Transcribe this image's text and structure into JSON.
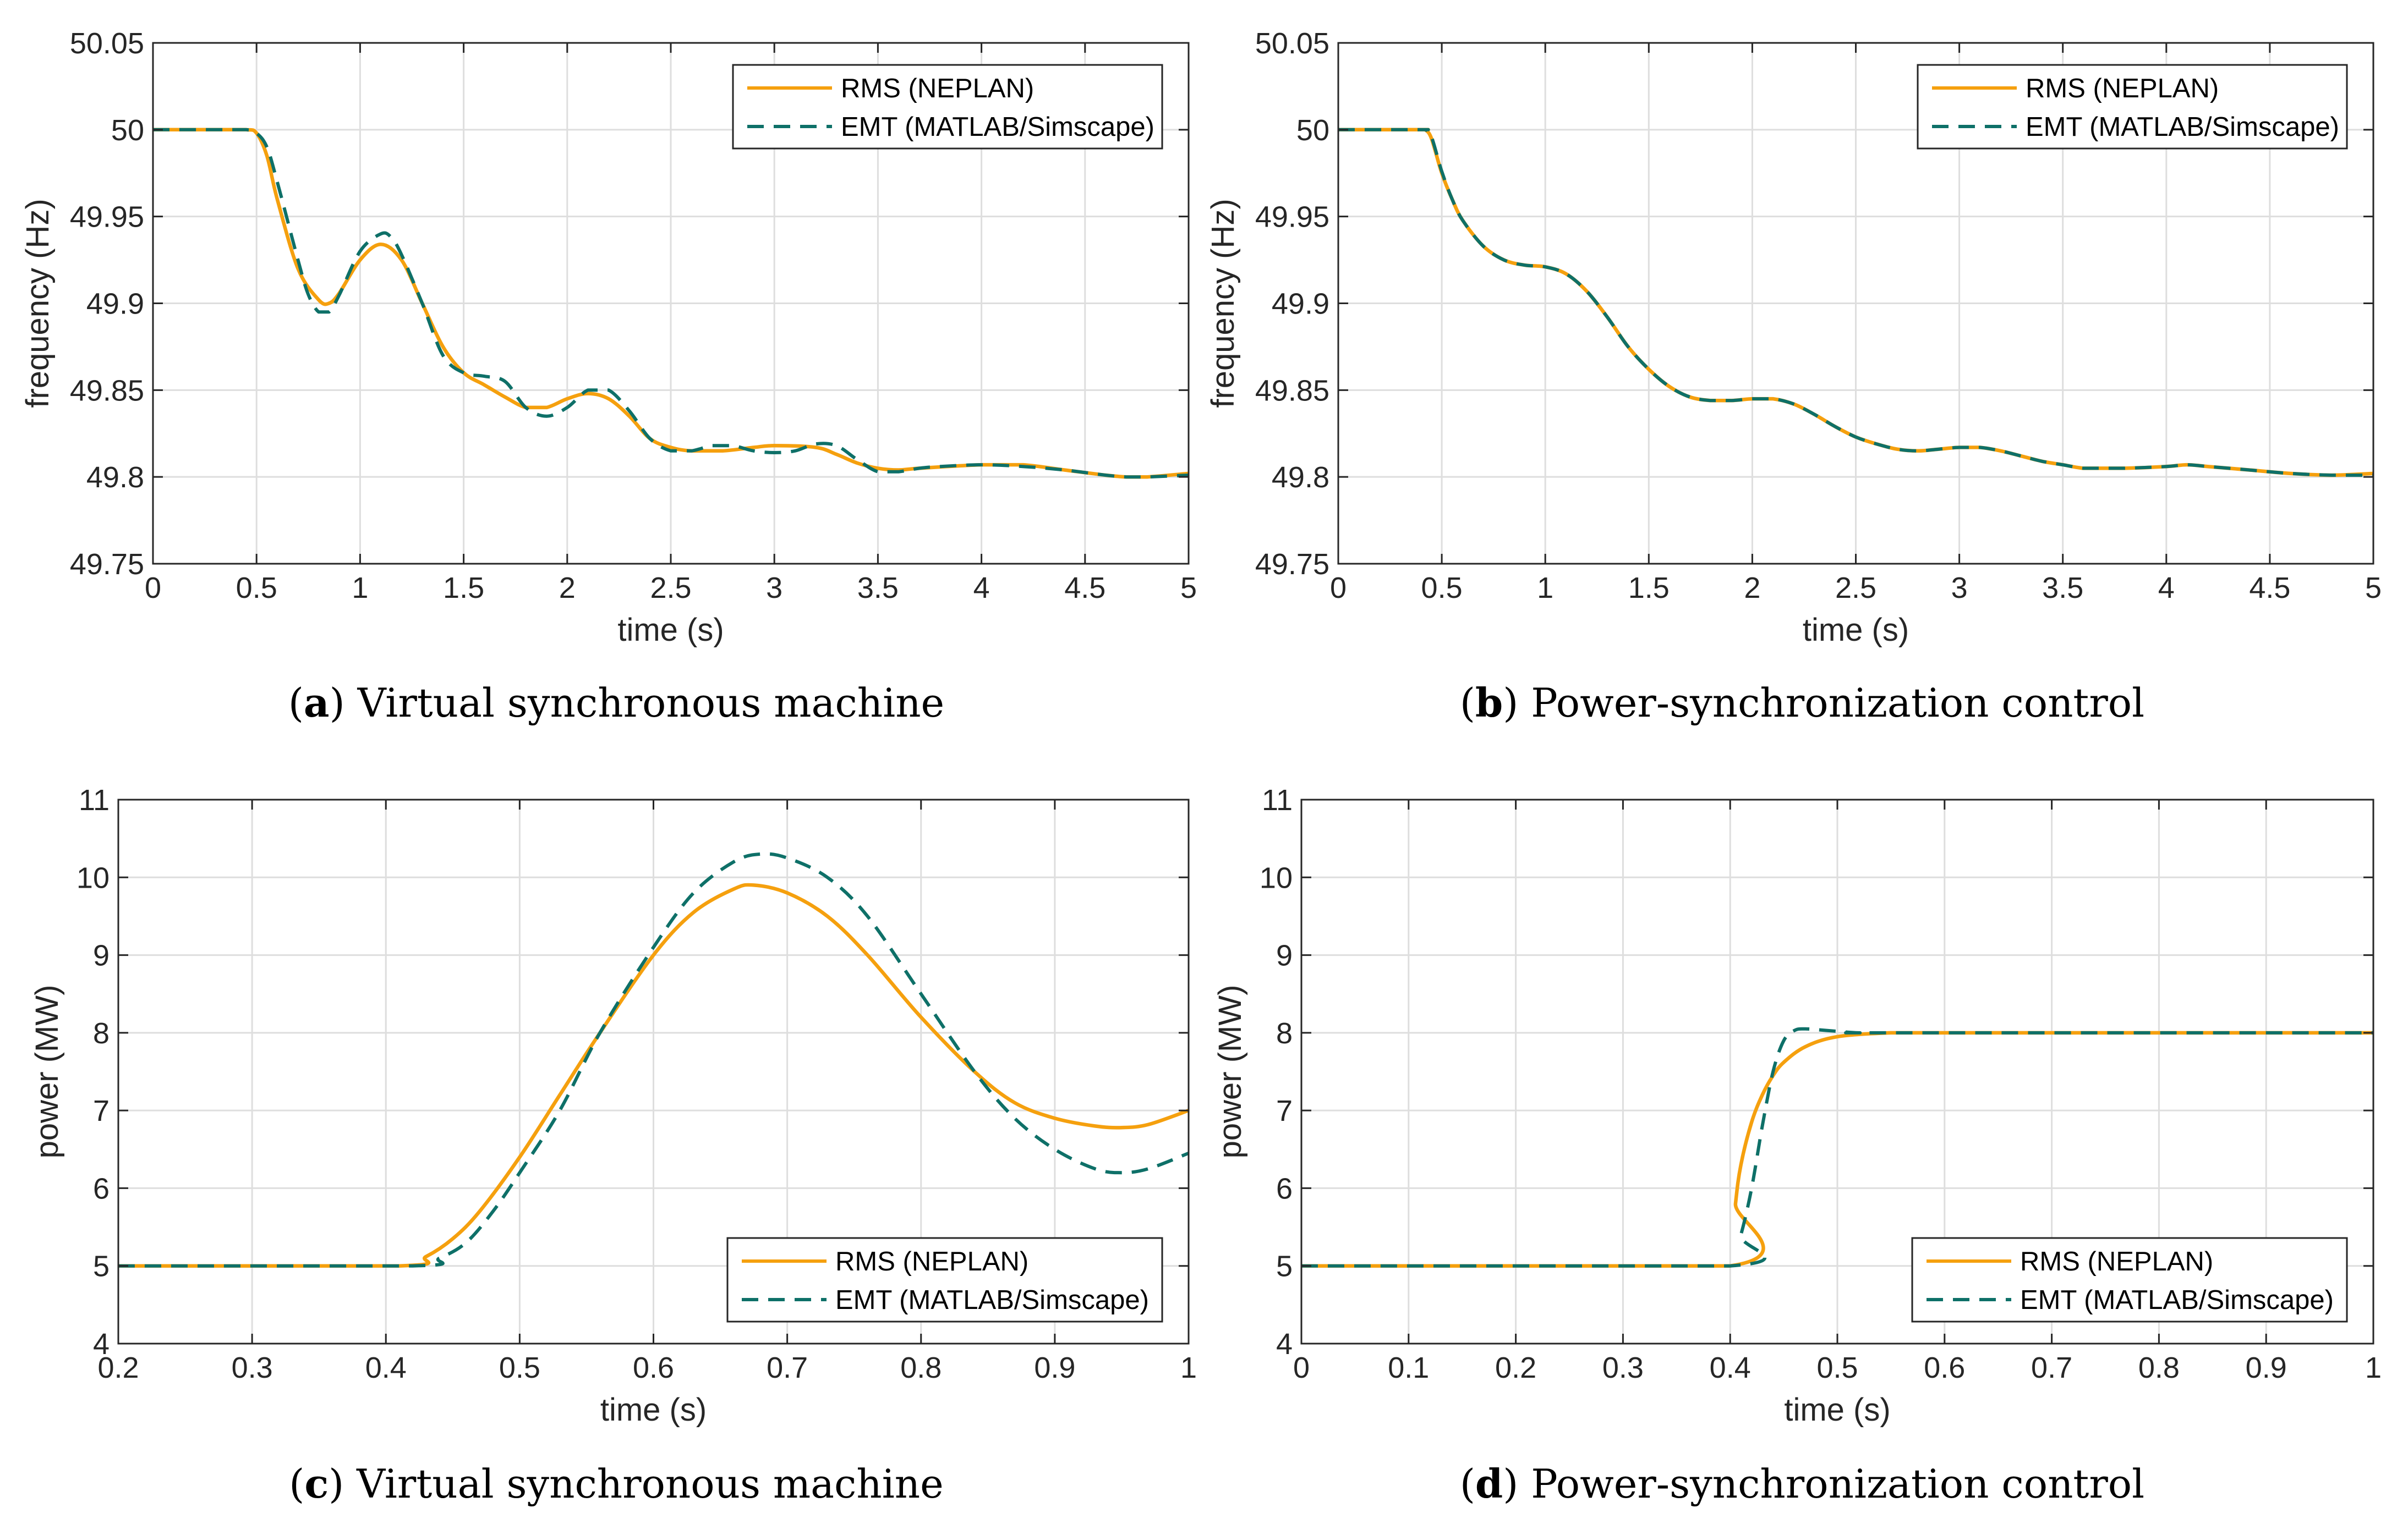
{
  "colors": {
    "rms": "#F5A00E",
    "emt": "#0E7068",
    "grid": "#DEDEDE",
    "axis": "#262626"
  },
  "chart_data": [
    {
      "id": "a",
      "type": "line",
      "caption_letter": "a",
      "caption_text": "Virtual synchronous machine",
      "xlabel": "time (s)",
      "ylabel": "frequency (Hz)",
      "xlim": [
        0,
        5
      ],
      "ylim": [
        49.75,
        50.05
      ],
      "xticks": [
        0,
        0.5,
        1,
        1.5,
        2,
        2.5,
        3,
        3.5,
        4,
        4.5,
        5
      ],
      "xtick_labels": [
        "0",
        "0.5",
        "1",
        "1.5",
        "2",
        "2.5",
        "3",
        "3.5",
        "4",
        "4.5",
        "5"
      ],
      "yticks": [
        49.75,
        49.8,
        49.85,
        49.9,
        49.95,
        50,
        50.05
      ],
      "ytick_labels": [
        "49.75",
        "49.8",
        "49.85",
        "49.9",
        "49.95",
        "50",
        "50.05"
      ],
      "legend_position": "top-right",
      "series": [
        {
          "name": "RMS (NEPLAN)",
          "style": "solid",
          "x": [
            0,
            0.3,
            0.45,
            0.5,
            0.55,
            0.6,
            0.7,
            0.8,
            0.85,
            0.9,
            1.0,
            1.1,
            1.2,
            1.3,
            1.4,
            1.5,
            1.6,
            1.7,
            1.8,
            1.9,
            2.0,
            2.1,
            2.2,
            2.3,
            2.4,
            2.5,
            2.6,
            2.75,
            2.9,
            3.0,
            3.2,
            3.3,
            3.4,
            3.5,
            3.6,
            3.7,
            4.0,
            4.2,
            4.4,
            4.6,
            4.7,
            4.8,
            5.0
          ],
          "y": [
            50.0,
            50.0,
            50.0,
            49.998,
            49.985,
            49.96,
            49.92,
            49.902,
            49.9,
            49.906,
            49.925,
            49.934,
            49.925,
            49.9,
            49.875,
            49.86,
            49.853,
            49.846,
            49.84,
            49.84,
            49.845,
            49.848,
            49.845,
            49.835,
            49.822,
            49.817,
            49.815,
            49.815,
            49.817,
            49.818,
            49.817,
            49.813,
            49.808,
            49.805,
            49.804,
            49.805,
            49.807,
            49.807,
            49.804,
            49.801,
            49.8,
            49.8,
            49.802
          ]
        },
        {
          "name": "EMT (MATLAB/Simscape)",
          "style": "dashed",
          "x": [
            0,
            0.3,
            0.45,
            0.5,
            0.55,
            0.6,
            0.7,
            0.75,
            0.8,
            0.85,
            0.9,
            1.0,
            1.1,
            1.15,
            1.2,
            1.3,
            1.4,
            1.5,
            1.6,
            1.7,
            1.8,
            1.9,
            2.0,
            2.1,
            2.2,
            2.3,
            2.4,
            2.5,
            2.6,
            2.7,
            2.8,
            2.9,
            3.0,
            3.1,
            3.2,
            3.3,
            3.4,
            3.5,
            3.6,
            3.7,
            3.8,
            4.0,
            4.2,
            4.4,
            4.6,
            4.7,
            4.8,
            5.0
          ],
          "y": [
            50.0,
            50.0,
            50.0,
            49.998,
            49.99,
            49.97,
            49.925,
            49.905,
            49.895,
            49.895,
            49.905,
            49.93,
            49.94,
            49.938,
            49.928,
            49.9,
            49.87,
            49.86,
            49.858,
            49.855,
            49.84,
            49.835,
            49.84,
            49.85,
            49.85,
            49.838,
            49.822,
            49.815,
            49.815,
            49.818,
            49.818,
            49.815,
            49.814,
            49.815,
            49.819,
            49.818,
            49.81,
            49.803,
            49.803,
            49.805,
            49.806,
            49.807,
            49.806,
            49.804,
            49.801,
            49.8,
            49.8,
            49.801
          ]
        }
      ]
    },
    {
      "id": "b",
      "type": "line",
      "caption_letter": "b",
      "caption_text": "Power-synchronization control",
      "xlabel": "time (s)",
      "ylabel": "frequency (Hz)",
      "xlim": [
        0,
        5
      ],
      "ylim": [
        49.75,
        50.05
      ],
      "xticks": [
        0,
        0.5,
        1,
        1.5,
        2,
        2.5,
        3,
        3.5,
        4,
        4.5,
        5
      ],
      "xtick_labels": [
        "0",
        "0.5",
        "1",
        "1.5",
        "2",
        "2.5",
        "3",
        "3.5",
        "4",
        "4.5",
        "5"
      ],
      "yticks": [
        49.75,
        49.8,
        49.85,
        49.9,
        49.95,
        50,
        50.05
      ],
      "ytick_labels": [
        "49.75",
        "49.8",
        "49.85",
        "49.9",
        "49.95",
        "50",
        "50.05"
      ],
      "legend_position": "top-right",
      "series": [
        {
          "name": "RMS (NEPLAN)",
          "style": "solid",
          "x": [
            0,
            0.4,
            0.42,
            0.45,
            0.5,
            0.55,
            0.6,
            0.7,
            0.8,
            0.9,
            1.0,
            1.1,
            1.2,
            1.3,
            1.4,
            1.5,
            1.6,
            1.7,
            1.8,
            1.9,
            2.0,
            2.1,
            2.2,
            2.3,
            2.4,
            2.5,
            2.6,
            2.7,
            2.8,
            2.9,
            3.0,
            3.1,
            3.2,
            3.3,
            3.4,
            3.5,
            3.6,
            3.7,
            3.8,
            4.0,
            4.1,
            4.2,
            4.4,
            4.6,
            4.8,
            5.0
          ],
          "y": [
            50.0,
            50.0,
            50.0,
            49.995,
            49.975,
            49.96,
            49.948,
            49.933,
            49.925,
            49.922,
            49.921,
            49.917,
            49.907,
            49.892,
            49.875,
            49.862,
            49.852,
            49.846,
            49.844,
            49.844,
            49.845,
            49.845,
            49.842,
            49.836,
            49.829,
            49.823,
            49.819,
            49.816,
            49.815,
            49.816,
            49.817,
            49.817,
            49.815,
            49.812,
            49.809,
            49.807,
            49.805,
            49.805,
            49.805,
            49.806,
            49.807,
            49.806,
            49.804,
            49.802,
            49.801,
            49.802
          ]
        },
        {
          "name": "EMT (MATLAB/Simscape)",
          "style": "dashed",
          "x": [
            0,
            0.4,
            0.42,
            0.45,
            0.5,
            0.55,
            0.6,
            0.7,
            0.8,
            0.9,
            1.0,
            1.1,
            1.2,
            1.3,
            1.4,
            1.5,
            1.6,
            1.7,
            1.8,
            1.9,
            2.0,
            2.1,
            2.2,
            2.3,
            2.4,
            2.5,
            2.6,
            2.7,
            2.8,
            2.9,
            3.0,
            3.1,
            3.2,
            3.3,
            3.4,
            3.5,
            3.6,
            3.7,
            3.8,
            4.0,
            4.1,
            4.2,
            4.4,
            4.6,
            4.8,
            5.0
          ],
          "y": [
            50.0,
            50.0,
            50.0,
            49.996,
            49.976,
            49.96,
            49.948,
            49.933,
            49.925,
            49.922,
            49.921,
            49.917,
            49.907,
            49.892,
            49.875,
            49.862,
            49.852,
            49.846,
            49.844,
            49.844,
            49.845,
            49.845,
            49.842,
            49.836,
            49.829,
            49.823,
            49.819,
            49.816,
            49.815,
            49.816,
            49.817,
            49.817,
            49.815,
            49.812,
            49.809,
            49.807,
            49.805,
            49.805,
            49.805,
            49.806,
            49.807,
            49.806,
            49.804,
            49.802,
            49.801,
            49.801
          ]
        }
      ]
    },
    {
      "id": "c",
      "type": "line",
      "caption_letter": "c",
      "caption_text": "Virtual synchronous machine",
      "xlabel": "time (s)",
      "ylabel": "power (MW)",
      "xlim": [
        0.2,
        1
      ],
      "ylim": [
        4,
        11
      ],
      "xticks": [
        0.2,
        0.3,
        0.4,
        0.5,
        0.6,
        0.7,
        0.8,
        0.9,
        1
      ],
      "xtick_labels": [
        "0.2",
        "0.3",
        "0.4",
        "0.5",
        "0.6",
        "0.7",
        "0.8",
        "0.9",
        "1"
      ],
      "yticks": [
        4,
        5,
        6,
        7,
        8,
        9,
        10,
        11
      ],
      "ytick_labels": [
        "4",
        "5",
        "6",
        "7",
        "8",
        "9",
        "10",
        "11"
      ],
      "legend_position": "bottom-right",
      "series": [
        {
          "name": "RMS (NEPLAN)",
          "style": "solid",
          "x": [
            0.2,
            0.41,
            0.43,
            0.45,
            0.47,
            0.5,
            0.53,
            0.56,
            0.6,
            0.63,
            0.66,
            0.675,
            0.7,
            0.73,
            0.76,
            0.8,
            0.84,
            0.87,
            0.9,
            0.93,
            0.95,
            0.97,
            1.0
          ],
          "y": [
            5.0,
            5.0,
            5.12,
            5.35,
            5.7,
            6.4,
            7.2,
            8.0,
            9.0,
            9.55,
            9.85,
            9.9,
            9.8,
            9.5,
            9.0,
            8.2,
            7.5,
            7.1,
            6.9,
            6.8,
            6.78,
            6.82,
            7.0
          ]
        },
        {
          "name": "EMT (MATLAB/Simscape)",
          "style": "dashed",
          "x": [
            0.2,
            0.42,
            0.44,
            0.46,
            0.48,
            0.5,
            0.53,
            0.56,
            0.6,
            0.63,
            0.66,
            0.68,
            0.7,
            0.73,
            0.76,
            0.8,
            0.84,
            0.87,
            0.9,
            0.93,
            0.95,
            0.97,
            1.0
          ],
          "y": [
            5.0,
            5.0,
            5.1,
            5.3,
            5.7,
            6.2,
            7.0,
            8.0,
            9.1,
            9.8,
            10.2,
            10.3,
            10.25,
            10.0,
            9.5,
            8.5,
            7.5,
            6.9,
            6.5,
            6.25,
            6.2,
            6.25,
            6.45
          ]
        }
      ]
    },
    {
      "id": "d",
      "type": "line",
      "caption_letter": "d",
      "caption_text": "Power-synchronization control",
      "xlabel": "time (s)",
      "ylabel": "power (MW)",
      "xlim": [
        0,
        1
      ],
      "ylim": [
        4,
        11
      ],
      "xticks": [
        0,
        0.1,
        0.2,
        0.3,
        0.4,
        0.5,
        0.6,
        0.7,
        0.8,
        0.9,
        1
      ],
      "xtick_labels": [
        "0",
        "0.1",
        "0.2",
        "0.3",
        "0.4",
        "0.5",
        "0.6",
        "0.7",
        "0.8",
        "0.9",
        "1"
      ],
      "yticks": [
        4,
        5,
        6,
        7,
        8,
        9,
        10,
        11
      ],
      "ytick_labels": [
        "4",
        "5",
        "6",
        "7",
        "8",
        "9",
        "10",
        "11"
      ],
      "legend_position": "bottom-right",
      "series": [
        {
          "name": "RMS (NEPLAN)",
          "style": "solid",
          "x": [
            0,
            0.4,
            0.405,
            0.41,
            0.42,
            0.43,
            0.44,
            0.45,
            0.47,
            0.5,
            0.55,
            0.6,
            1.0
          ],
          "y": [
            5.0,
            5.0,
            5.8,
            6.3,
            6.85,
            7.2,
            7.45,
            7.62,
            7.82,
            7.95,
            8.0,
            8.0,
            8.0
          ]
        },
        {
          "name": "EMT (MATLAB/Simscape)",
          "style": "dashed",
          "x": [
            0,
            0.4,
            0.41,
            0.42,
            0.43,
            0.44,
            0.45,
            0.46,
            0.47,
            0.49,
            0.52,
            0.55,
            1.0
          ],
          "y": [
            5.0,
            5.0,
            5.4,
            6.0,
            6.8,
            7.5,
            7.9,
            8.03,
            8.05,
            8.03,
            8.0,
            8.0,
            8.0
          ]
        }
      ]
    }
  ]
}
